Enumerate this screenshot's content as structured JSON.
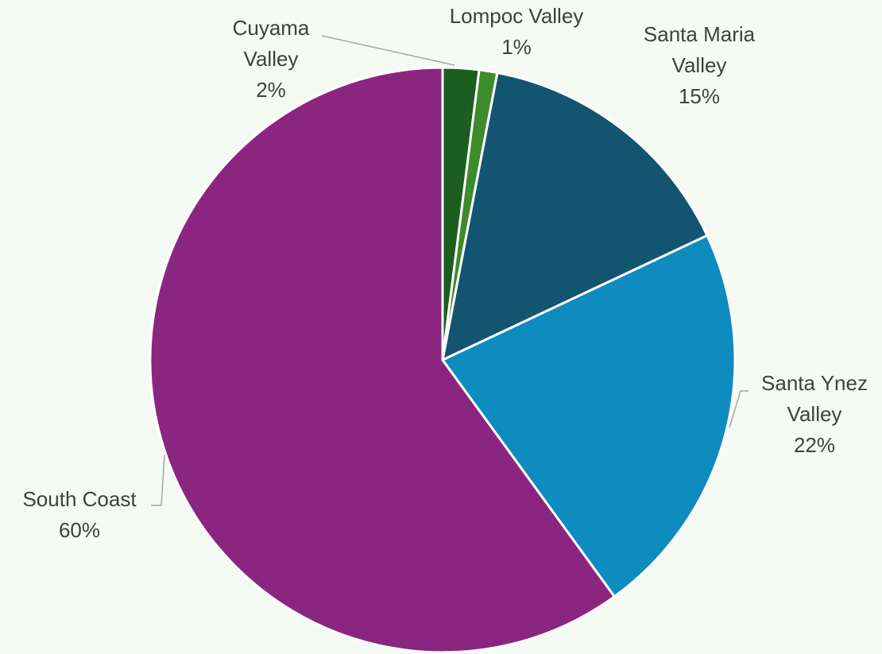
{
  "chart_data": {
    "type": "pie",
    "categories": [
      "Cuyama Valley",
      "Lompoc Valley",
      "Santa Maria Valley",
      "Santa Ynez Valley",
      "South Coast"
    ],
    "values": [
      2,
      1,
      15,
      22,
      60
    ],
    "value_labels": [
      "2%",
      "1%",
      "15%",
      "22%",
      "60%"
    ],
    "colors": [
      "#1b5e20",
      "#3d8b2a",
      "#135571",
      "#0e8bbf",
      "#8b2680"
    ]
  }
}
